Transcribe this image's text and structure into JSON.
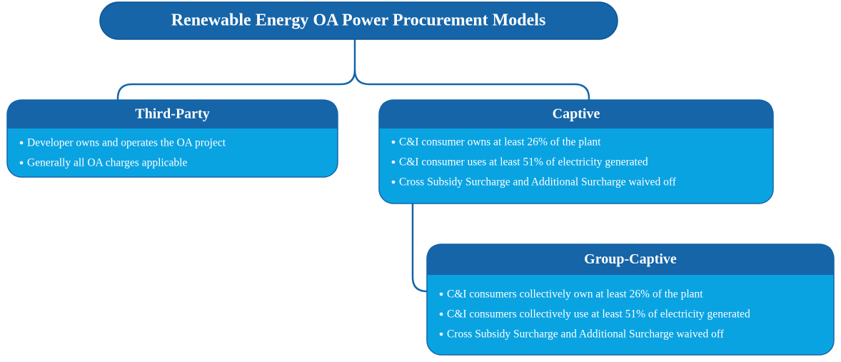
{
  "title": "Renewable Energy OA Power Procurement Models",
  "boxes": [
    {
      "title": "Third-Party",
      "bullets": [
        "Developer owns and operates the OA project",
        "Generally all OA charges applicable"
      ]
    },
    {
      "title": "Captive",
      "bullets": [
        "C&I consumer owns at least 26% of the plant",
        "C&I consumer uses at least 51% of electricity generated",
        "Cross Subsidy Surcharge and Additional Surcharge waived off"
      ]
    },
    {
      "title": "Group-Captive",
      "bullets": [
        "C&I consumers collectively own at least 26% of the plant",
        "C&I consumers collectively use at least 51% of electricity generated",
        "Cross Subsidy Surcharge and Additional Surcharge waived off"
      ]
    }
  ]
}
